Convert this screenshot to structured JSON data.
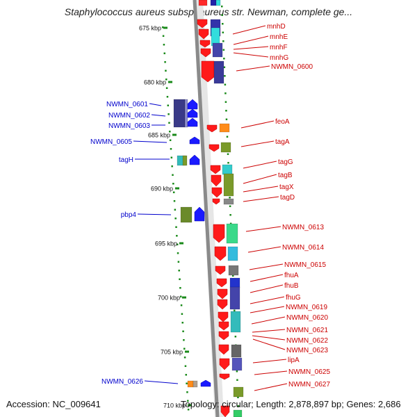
{
  "title": "Staphylococcus aureus subsp. aureus str. Newman, complete ge...",
  "footer": {
    "accession": "Accession: NC_009641",
    "topology": "Topology: circular; Length: 2,878,897 bp; Genes: 2,686"
  },
  "colors": {
    "backbone": "#8a8a8a",
    "ruler_dot": "#1a8a1a",
    "label_left": "#0000cc",
    "label_right": "#cc0000",
    "gene_forward": "#1a1aff",
    "gene_reverse": "#ff1a1a"
  },
  "ticks": [
    "675 kbp",
    "680 kbp",
    "685 kbp",
    "690 kbp",
    "695 kbp",
    "700 kbp",
    "705 kbp",
    "710 kbp"
  ],
  "left_genes": [
    "NWMN_0601",
    "NWMN_0602",
    "NWMN_0603",
    "NWMN_0605",
    "tagH",
    "pbp4",
    "NWMN_0626"
  ],
  "right_genes": [
    "mnhD",
    "mnhE",
    "mnhF",
    "mnhG",
    "NWMN_0600",
    "feoA",
    "tagA",
    "tagG",
    "tagB",
    "tagX",
    "tagD",
    "NWMN_0613",
    "NWMN_0614",
    "NWMN_0615",
    "fhuA",
    "fhuB",
    "fhuG",
    "NWMN_0619",
    "NWMN_0620",
    "NWMN_0621",
    "NWMN_0622",
    "NWMN_0623",
    "lipA",
    "NWMN_0625",
    "NWMN_0627"
  ]
}
